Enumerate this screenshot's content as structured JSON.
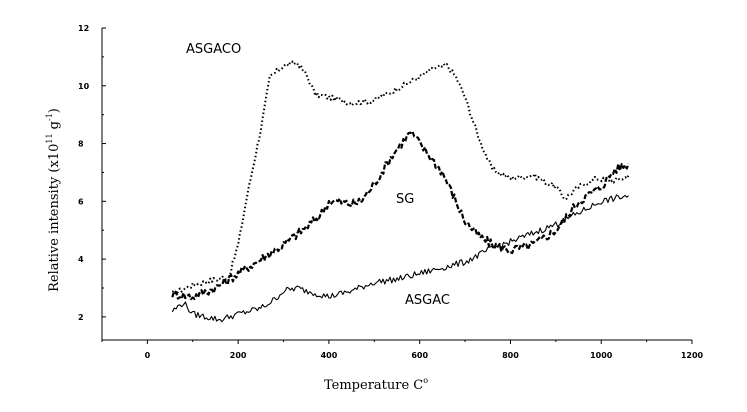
{
  "chart_data": {
    "type": "line",
    "title": "",
    "xlabel": "Temperature C",
    "xlabel_sup": "o",
    "ylabel_main": "Relative intensity (x10",
    "ylabel_sup1": "11",
    "ylabel_mid": " g",
    "ylabel_sup2": "-1",
    "ylabel_end": ")",
    "xlim": [
      -100,
      1200
    ],
    "ylim": [
      1.2,
      12.0
    ],
    "xticks": [
      "0",
      "200",
      "400",
      "600",
      "800",
      "1000",
      "1200"
    ],
    "yticks": [
      "2",
      "4",
      "6",
      "8",
      "10",
      "12"
    ],
    "grid": false,
    "series": [
      {
        "name": "ASGACO",
        "style": "dotted",
        "x": [
          55,
          100,
          150,
          180,
          200,
          220,
          250,
          270,
          300,
          330,
          350,
          370,
          400,
          450,
          500,
          550,
          600,
          630,
          660,
          680,
          700,
          730,
          760,
          800,
          850,
          900,
          920,
          950,
          990,
          1020,
          1050,
          1060
        ],
        "y": [
          2.8,
          3.1,
          3.3,
          3.4,
          4.5,
          6.2,
          8.5,
          10.3,
          10.7,
          10.8,
          10.4,
          9.7,
          9.6,
          9.4,
          9.5,
          9.9,
          10.3,
          10.6,
          10.7,
          10.3,
          9.6,
          8.2,
          7.1,
          6.8,
          6.9,
          6.5,
          6.1,
          6.5,
          6.8,
          6.7,
          6.8,
          6.9
        ]
      },
      {
        "name": "SG",
        "style": "dashed",
        "x": [
          55,
          100,
          150,
          200,
          250,
          300,
          350,
          380,
          400,
          420,
          450,
          470,
          500,
          540,
          560,
          580,
          600,
          620,
          650,
          680,
          700,
          730,
          760,
          800,
          850,
          900,
          950,
          1000,
          1030,
          1060
        ],
        "y": [
          2.8,
          2.7,
          3.0,
          3.5,
          4.0,
          4.5,
          5.1,
          5.5,
          6.0,
          6.0,
          5.9,
          6.0,
          6.6,
          7.6,
          8.0,
          8.4,
          8.0,
          7.6,
          7.0,
          6.0,
          5.3,
          4.8,
          4.5,
          4.3,
          4.5,
          5.0,
          6.0,
          6.5,
          7.1,
          7.3
        ]
      },
      {
        "name": "ASGAC",
        "style": "solid",
        "x": [
          55,
          80,
          100,
          130,
          160,
          200,
          250,
          280,
          300,
          330,
          350,
          400,
          450,
          500,
          550,
          600,
          650,
          700,
          750,
          800,
          850,
          900,
          950,
          1000,
          1030,
          1060
        ],
        "y": [
          2.2,
          2.5,
          2.1,
          2.0,
          1.9,
          2.1,
          2.3,
          2.6,
          2.9,
          3.0,
          2.9,
          2.7,
          2.9,
          3.2,
          3.3,
          3.5,
          3.7,
          3.9,
          4.3,
          4.6,
          4.9,
          5.2,
          5.6,
          6.0,
          6.1,
          6.2
        ]
      }
    ]
  }
}
